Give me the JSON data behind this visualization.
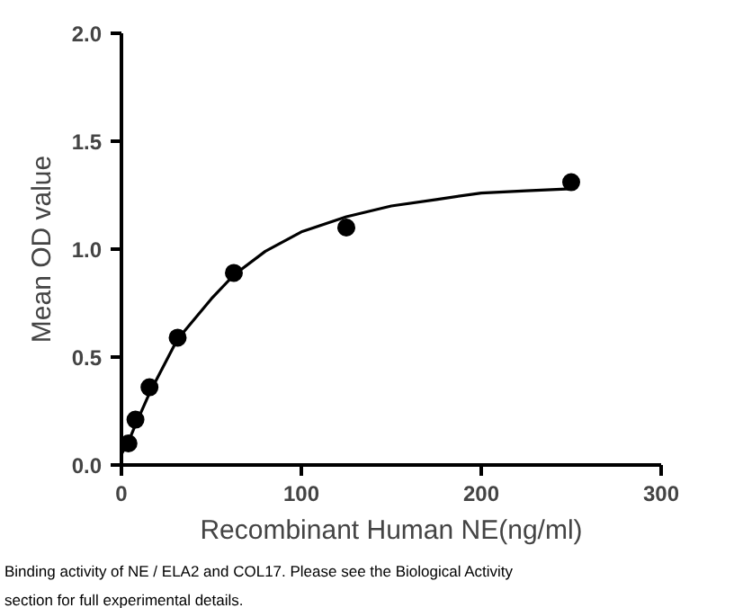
{
  "chart_data": {
    "type": "scatter",
    "xlabel": "Recombinant Human NE(ng/ml)",
    "ylabel": "Mean OD value",
    "xlim": [
      0,
      300
    ],
    "xticks": [
      0,
      100,
      200,
      300
    ],
    "ylim": [
      0,
      2.0
    ],
    "yticks": [
      {
        "value": 0,
        "label": "0.0"
      },
      {
        "value": 0.5,
        "label": "0.5"
      },
      {
        "value": 1.0,
        "label": "1.0"
      },
      {
        "value": 1.5,
        "label": "1.5"
      },
      {
        "value": 2.0,
        "label": "2.0"
      }
    ],
    "grid": false,
    "series": [
      {
        "marker": "circle",
        "color": "#000000",
        "x": [
          3.9,
          7.8,
          15.6,
          31.25,
          62.5,
          125,
          250
        ],
        "values": [
          0.1,
          0.21,
          0.36,
          0.59,
          0.89,
          1.1,
          1.31
        ]
      },
      {
        "type": "line",
        "color": "#000000",
        "x": [
          0,
          4,
          8,
          16,
          31,
          50,
          62.5,
          80,
          100,
          125,
          150,
          175,
          200,
          225,
          250
        ],
        "values": [
          0.05,
          0.11,
          0.19,
          0.34,
          0.58,
          0.77,
          0.88,
          0.99,
          1.08,
          1.15,
          1.2,
          1.23,
          1.26,
          1.27,
          1.28
        ]
      }
    ],
    "annotations": [
      "Binding activity of NE / ELA2 and COL17. Please see the Biological Activity section for full experimental details."
    ]
  }
}
